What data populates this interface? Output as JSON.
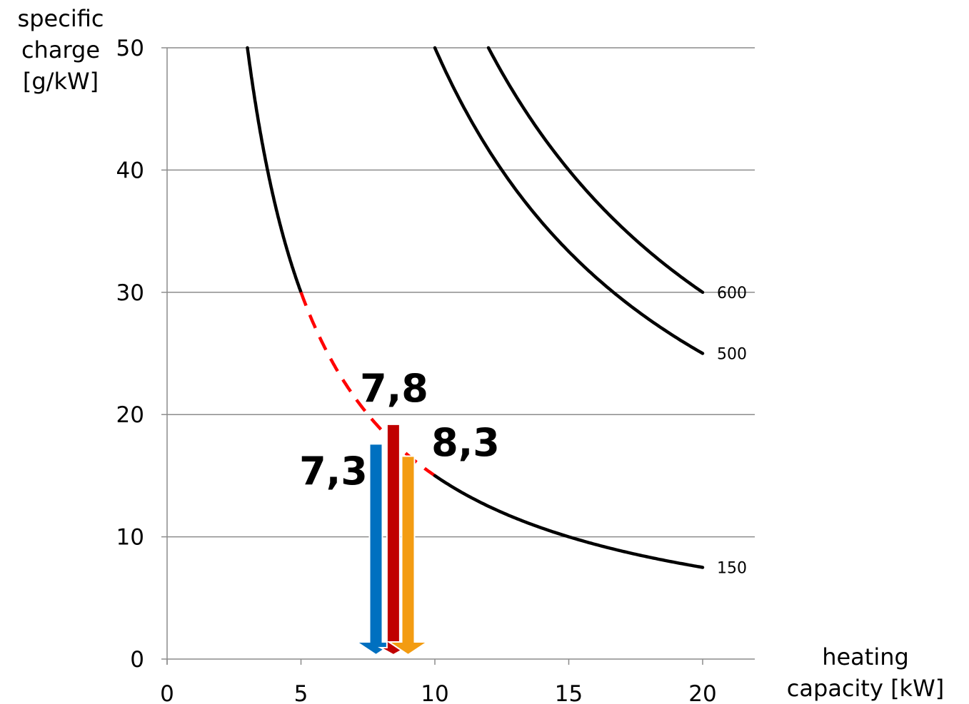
{
  "chart_data": {
    "type": "line",
    "xlabel": [
      "heating",
      "capacity [kW]"
    ],
    "ylabel": [
      "specific",
      "charge",
      "[g/kW]"
    ],
    "xlim": [
      0,
      22
    ],
    "ylim": [
      0,
      50
    ],
    "xticks": [
      0,
      5,
      10,
      15,
      20
    ],
    "yticks": [
      0,
      10,
      20,
      30,
      40,
      50
    ],
    "grid": "horizontal",
    "series": [
      {
        "name": "150",
        "x": [
          3,
          3.5,
          4,
          4.5,
          5,
          6,
          7,
          8,
          9,
          10,
          12,
          14,
          16,
          18,
          20
        ],
        "y": [
          50,
          42.9,
          37.5,
          33.3,
          30,
          25,
          21.4,
          18.8,
          16.7,
          15,
          12.5,
          10.7,
          9.4,
          8.3,
          7.5
        ],
        "dashed_range": [
          5,
          10
        ],
        "dashed_color": "#ff0000",
        "color": "#000000"
      },
      {
        "name": "500",
        "x": [
          10,
          11,
          12,
          13,
          14,
          15,
          16,
          17,
          18,
          19,
          20
        ],
        "y": [
          50,
          45.5,
          41.7,
          38.5,
          35.7,
          33.3,
          31.3,
          29.4,
          27.8,
          26.3,
          25
        ],
        "color": "#000000"
      },
      {
        "name": "600",
        "x": [
          12,
          13,
          14,
          15,
          16,
          17,
          18,
          19,
          20
        ],
        "y": [
          50,
          46.2,
          42.9,
          40,
          37.5,
          35.3,
          33.3,
          31.6,
          30
        ],
        "color": "#000000"
      }
    ],
    "annotations": [
      {
        "text": "7,3",
        "x": 7.8,
        "y_top": 17.6,
        "color": "#0070c0"
      },
      {
        "text": "7,8",
        "x": 8.45,
        "y_top": 19.2,
        "color": "#c00000"
      },
      {
        "text": "8,3",
        "x": 9.0,
        "y_top": 16.6,
        "color": "#f39c12"
      }
    ]
  }
}
